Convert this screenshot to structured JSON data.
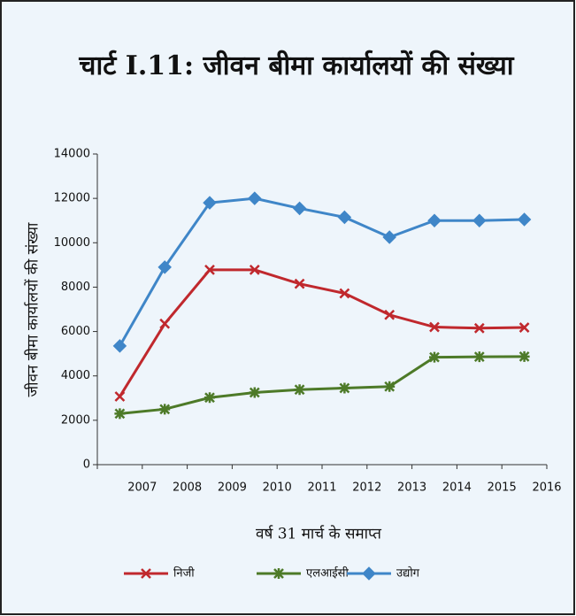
{
  "chart_data": {
    "type": "line",
    "title": "चार्ट I.11: जीवन बीमा कार्यालयों की संख्या",
    "y_label": "जीवन बीमा कार्यालयों की संख्या",
    "x_label": "वर्ष 31 मार्च के समाप्त",
    "categories": [
      "2007",
      "2008",
      "2009",
      "2010",
      "2011",
      "2012",
      "2013",
      "2014",
      "2015",
      "2016"
    ],
    "series": [
      {
        "name": "निजी",
        "color": "#c0282d",
        "marker": "x",
        "values": [
          3070,
          6350,
          8780,
          8780,
          8150,
          7720,
          6750,
          6200,
          6150,
          6180
        ]
      },
      {
        "name": "एलआईसी",
        "color": "#4d7a28",
        "marker": "star",
        "values": [
          2300,
          2500,
          3020,
          3250,
          3380,
          3450,
          3520,
          4840,
          4860,
          4870
        ]
      },
      {
        "name": "उद्योग",
        "color": "#3f86c8",
        "marker": "diamond",
        "values": [
          5350,
          8900,
          11800,
          12000,
          11550,
          11150,
          10250,
          11000,
          11000,
          11050
        ]
      }
    ],
    "ylim": [
      0,
      14000
    ],
    "yticks": [
      0,
      2000,
      4000,
      6000,
      8000,
      10000,
      12000,
      14000
    ]
  }
}
